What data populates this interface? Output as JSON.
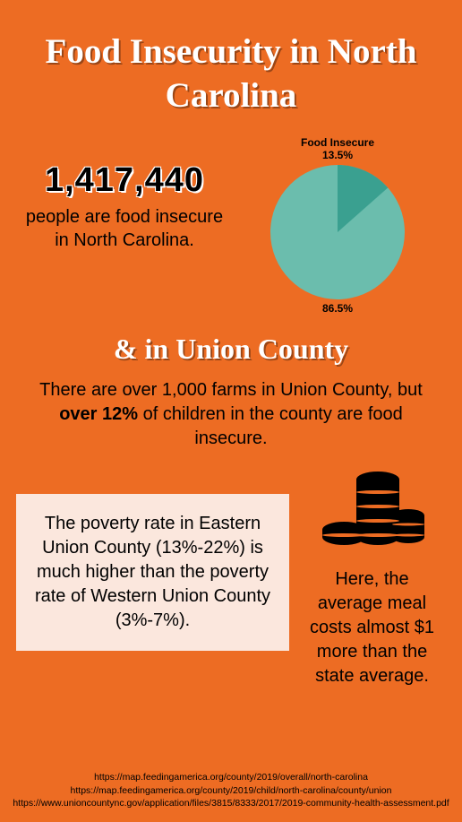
{
  "title": "Food Insecurity in North Carolina",
  "stat": {
    "number": "1,417,440",
    "desc": "people are food insecure in North Carolina."
  },
  "pie_chart": {
    "type": "pie",
    "label_top_name": "Food Insecure",
    "label_top_pct": "13.5%",
    "label_bottom_pct": "86.5%",
    "slices": [
      {
        "value": 13.5,
        "color": "#3aa090"
      },
      {
        "value": 86.5,
        "color": "#6bbdad"
      }
    ],
    "radius": 75,
    "start_angle_deg": -90
  },
  "subheading": "& in Union County",
  "union_text_pre": "There are over 1,000 farms in Union County, but ",
  "union_text_bold": "over 12%",
  "union_text_post": " of children in the county are food insecure.",
  "poverty_box": "The poverty rate in Eastern Union County (13%-22%) is much higher than the poverty rate of Western Union County (3%-7%).",
  "meal_text": "Here, the average meal costs almost $1 more than the state average.",
  "coin_color": "#000000",
  "sources": [
    "https://map.feedingamerica.org/county/2019/overall/north-carolina",
    "https://map.feedingamerica.org/county/2019/child/north-carolina/county/union",
    "https://www.unioncountync.gov/application/files/3815/8333/2017/2019-community-health-assessment.pdf"
  ]
}
